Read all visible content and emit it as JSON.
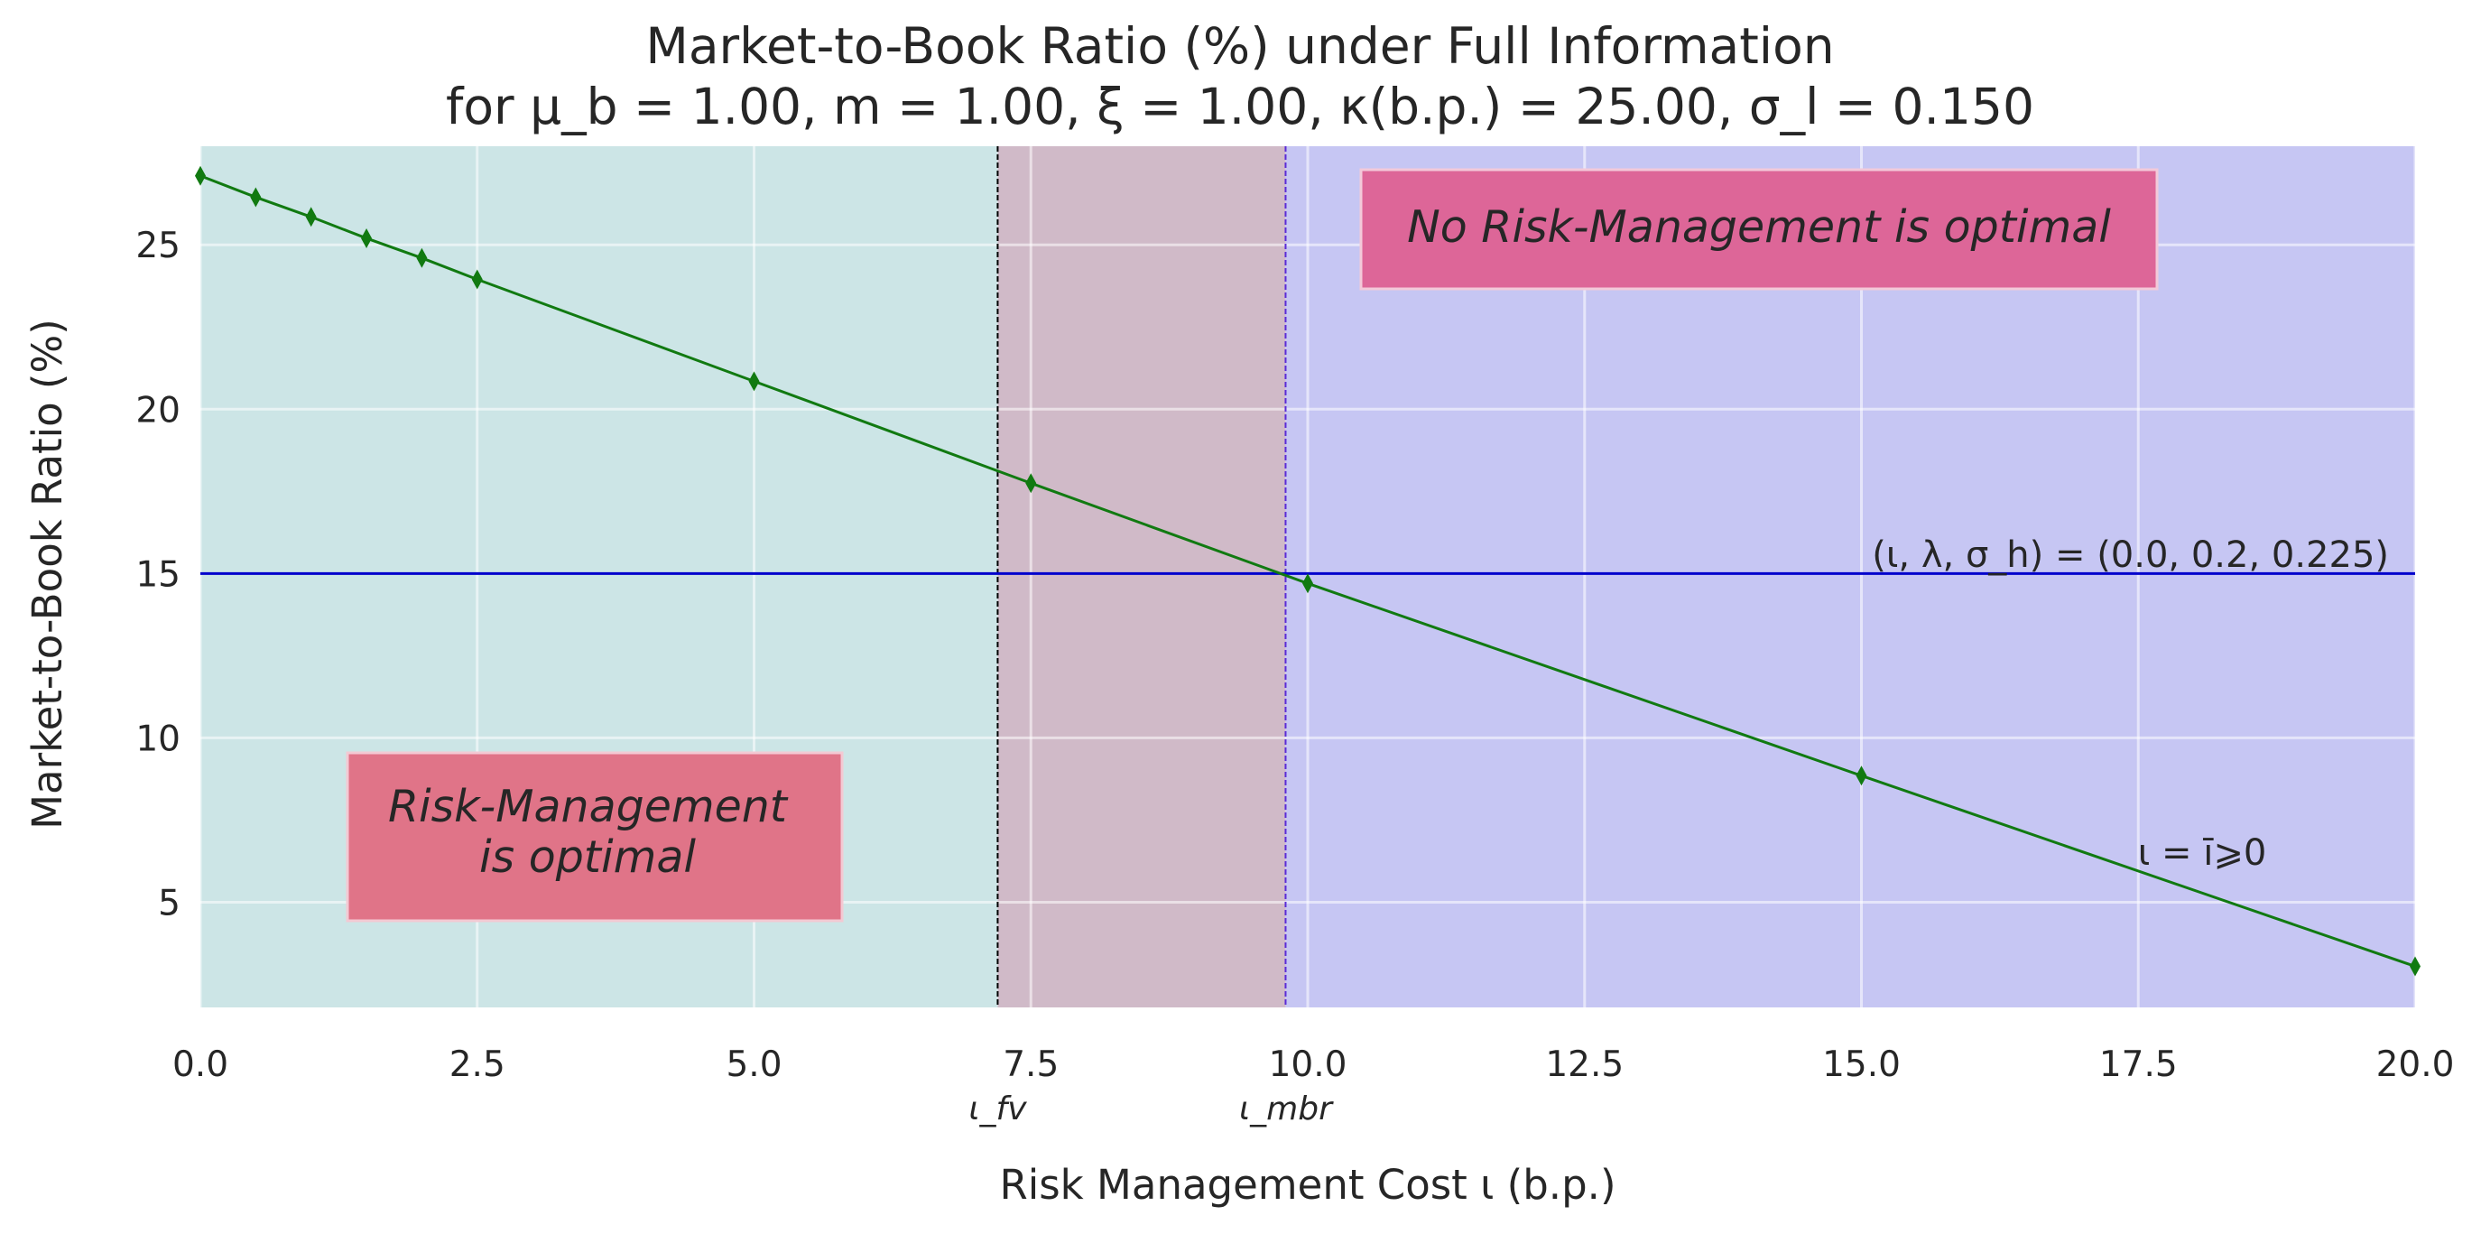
{
  "chart_data": {
    "type": "line",
    "title_line1": "Market-to-Book Ratio (%) under Full Information",
    "title_line2": "for μ_b = 1.00, m = 1.00, ξ = 1.00, κ(b.p.) = 25.00, σ_l = 0.150",
    "xlabel": "Risk Management Cost ι (b.p.)",
    "ylabel": "Market-to-Book Ratio (%)",
    "xlim": [
      0.0,
      20.0
    ],
    "ylim": [
      1.8,
      28.0
    ],
    "x_ticks": [
      "0.0",
      "2.5",
      "5.0",
      "7.5",
      "10.0",
      "12.5",
      "15.0",
      "17.5",
      "20.0"
    ],
    "y_ticks": [
      "5",
      "10",
      "15",
      "20",
      "25"
    ],
    "grid": true,
    "series": [
      {
        "name": "",
        "color": "#117a11",
        "marker": "thin_diamond",
        "x": [
          0.0,
          0.5,
          1.0,
          1.5,
          2.0,
          2.5,
          5.0,
          7.5,
          10.0,
          15.0,
          20.0
        ],
        "y": [
          27.1,
          26.45,
          25.85,
          25.2,
          24.6,
          23.95,
          20.85,
          17.75,
          14.7,
          8.85,
          3.05
        ]
      }
    ],
    "reference_line": {
      "y": 15.0,
      "color": "#0000cc",
      "label": "(ι, λ, σ_h) = (0.0, 0.2, 0.225)"
    },
    "vertical_lines": [
      {
        "x": 7.2,
        "label": "ι_fv",
        "color": "#000000"
      },
      {
        "x": 9.8,
        "label": "ι_mbr",
        "color": "#5a2bd6"
      }
    ],
    "regions": [
      {
        "x_from": 0.0,
        "x_to": 7.2,
        "color": "#cce5e6"
      },
      {
        "x_from": 7.2,
        "x_to": 9.8,
        "color": "#d0bac8"
      },
      {
        "x_from": 9.8,
        "x_to": 20.0,
        "color": "#c6c6f3"
      }
    ],
    "annotations": {
      "rm_optimal_line1": "Risk-Management",
      "rm_optimal_line2": "is optimal",
      "no_rm_optimal": "No Risk-Management is optimal",
      "curve_label": "ι = ī⩾0"
    }
  }
}
